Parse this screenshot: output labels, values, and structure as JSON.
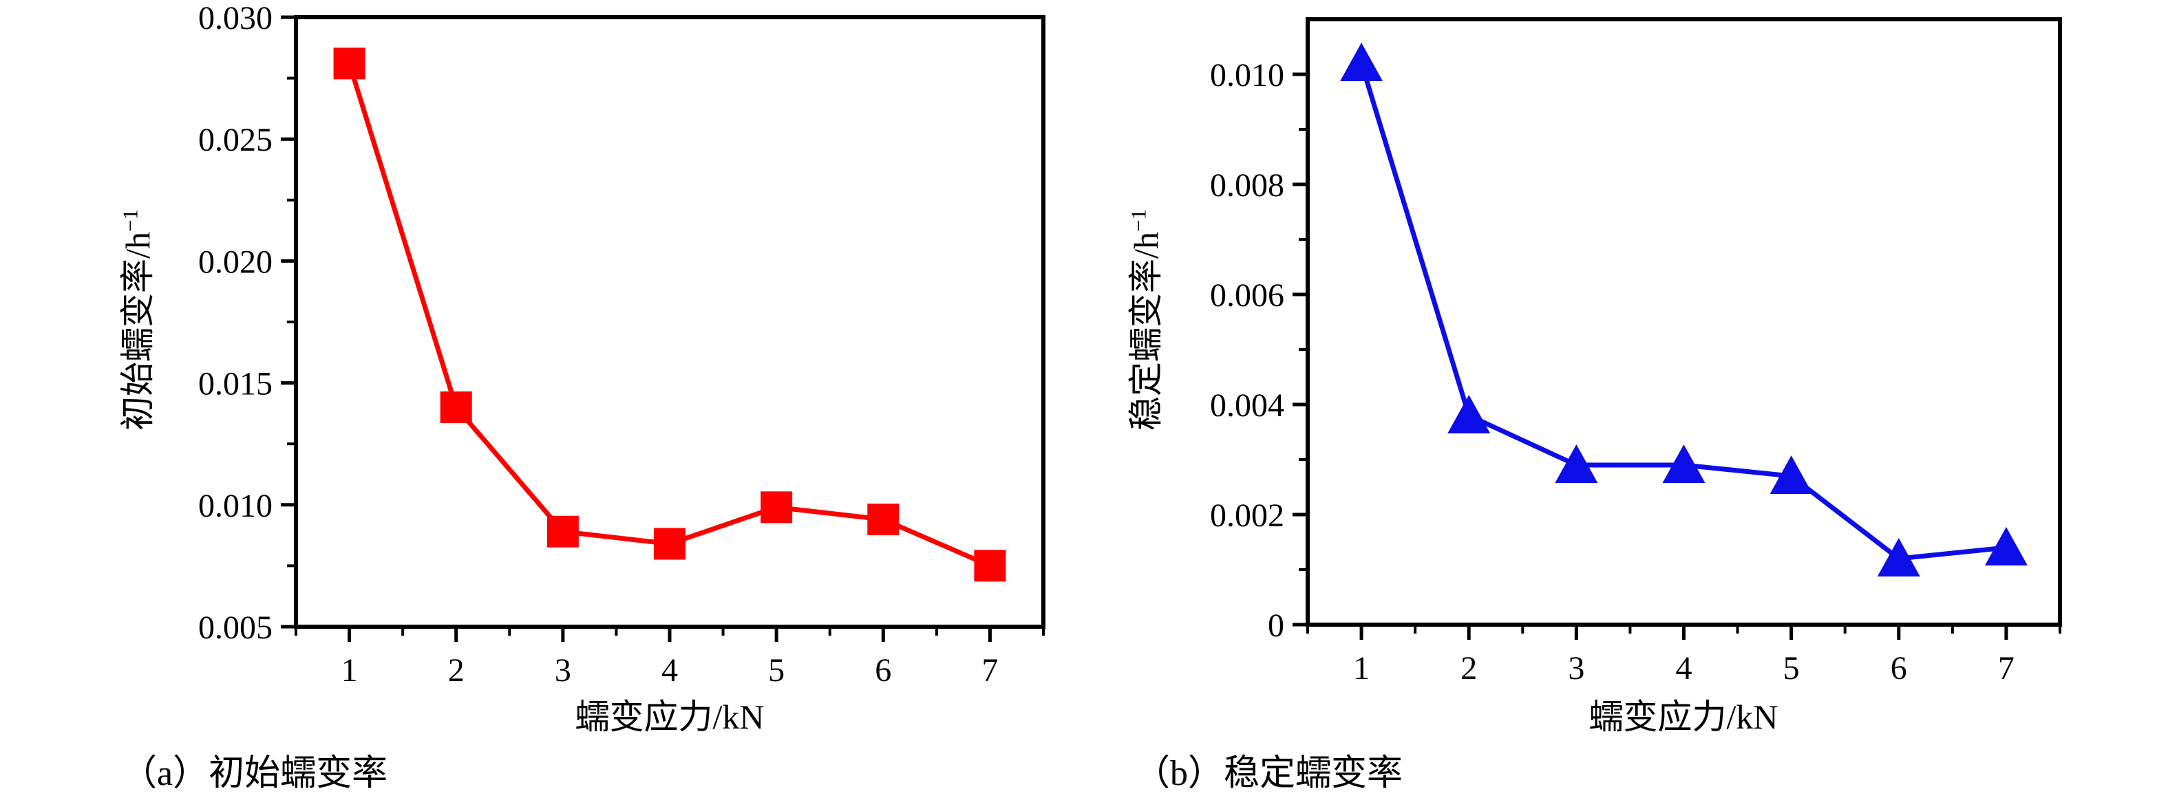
{
  "page": {
    "background": "#ffffff"
  },
  "chart_data": [
    {
      "id": "a",
      "type": "line",
      "caption": "（a）初始蠕变率",
      "xlabel": "蠕变应力/kN",
      "ylabel": "初始蠕变率/h⁻¹",
      "x": [
        1,
        2,
        3,
        4,
        5,
        6,
        7
      ],
      "values": [
        0.0281,
        0.014,
        0.0089,
        0.0084,
        0.0099,
        0.0094,
        0.0075
      ],
      "marker": "square",
      "color": "#fe0000",
      "xlim": [
        0.5,
        7.5
      ],
      "ylim": [
        0.005,
        0.03
      ],
      "yticks": [
        0.005,
        0.01,
        0.015,
        0.02,
        0.025,
        0.03
      ],
      "ytick_labels": [
        "0.005",
        "0.010",
        "0.015",
        "0.020",
        "0.025",
        "0.030"
      ],
      "yminor": [
        0.0075,
        0.0125,
        0.0175,
        0.0225,
        0.0275
      ],
      "xticks": [
        1,
        2,
        3,
        4,
        5,
        6,
        7
      ],
      "xtick_labels": [
        "1",
        "2",
        "3",
        "4",
        "5",
        "6",
        "7"
      ],
      "xminor": [
        0.5,
        1.5,
        2.5,
        3.5,
        4.5,
        5.5,
        6.5,
        7.5
      ],
      "grid": false,
      "legend": null
    },
    {
      "id": "b",
      "type": "line",
      "caption": "（b）稳定蠕变率",
      "xlabel": "蠕变应力/kN",
      "ylabel": "稳定蠕变率/h⁻¹",
      "x": [
        1,
        2,
        3,
        4,
        5,
        6,
        7
      ],
      "values": [
        0.0102,
        0.0038,
        0.0029,
        0.0029,
        0.0027,
        0.0012,
        0.0014
      ],
      "marker": "triangle",
      "color": "#0d0de8",
      "xlim": [
        0.5,
        7.5
      ],
      "ylim": [
        0,
        0.011
      ],
      "yticks": [
        0,
        0.002,
        0.004,
        0.006,
        0.008,
        0.01
      ],
      "ytick_labels": [
        "0",
        "0.002",
        "0.004",
        "0.006",
        "0.008",
        "0.010"
      ],
      "yminor": [
        0.001,
        0.003,
        0.005,
        0.007,
        0.009
      ],
      "xticks": [
        1,
        2,
        3,
        4,
        5,
        6,
        7
      ],
      "xtick_labels": [
        "1",
        "2",
        "3",
        "4",
        "5",
        "6",
        "7"
      ],
      "xminor": [
        0.5,
        1.5,
        2.5,
        3.5,
        4.5,
        5.5,
        6.5,
        7.5
      ],
      "grid": false,
      "legend": null
    }
  ]
}
